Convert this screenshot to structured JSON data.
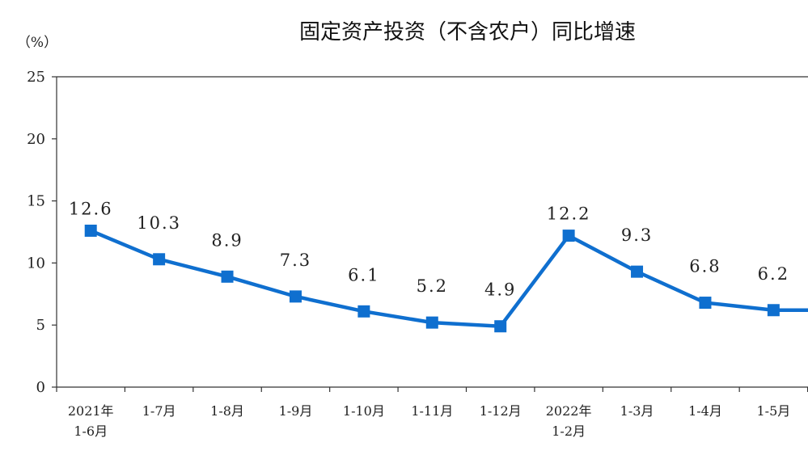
{
  "chart_data": {
    "type": "line",
    "title": "固定资产投资（不含农户）同比增速",
    "ylabel": "（%）",
    "xlabel": "",
    "ylim": [
      0,
      25
    ],
    "yticks": [
      "0",
      "5",
      "10",
      "15",
      "20",
      "25"
    ],
    "grid": false,
    "color": "#0f6fcf",
    "categories": [
      [
        "2021年",
        "1-6月"
      ],
      [
        "1-7月"
      ],
      [
        "1-8月"
      ],
      [
        "1-9月"
      ],
      [
        "1-10月"
      ],
      [
        "1-11月"
      ],
      [
        "1-12月"
      ],
      [
        "2022年",
        "1-2月"
      ],
      [
        "1-3月"
      ],
      [
        "1-4月"
      ],
      [
        "1-5月"
      ],
      [
        ""
      ]
    ],
    "values": [
      12.6,
      10.3,
      8.9,
      7.3,
      6.1,
      5.2,
      4.9,
      12.2,
      9.3,
      6.8,
      6.2,
      6.2
    ],
    "data_labels": [
      "12.6",
      "10.3",
      "8.9",
      "7.3",
      "6.1",
      "5.2",
      "4.9",
      "12.2",
      "9.3",
      "6.8",
      "6.2",
      ""
    ]
  }
}
